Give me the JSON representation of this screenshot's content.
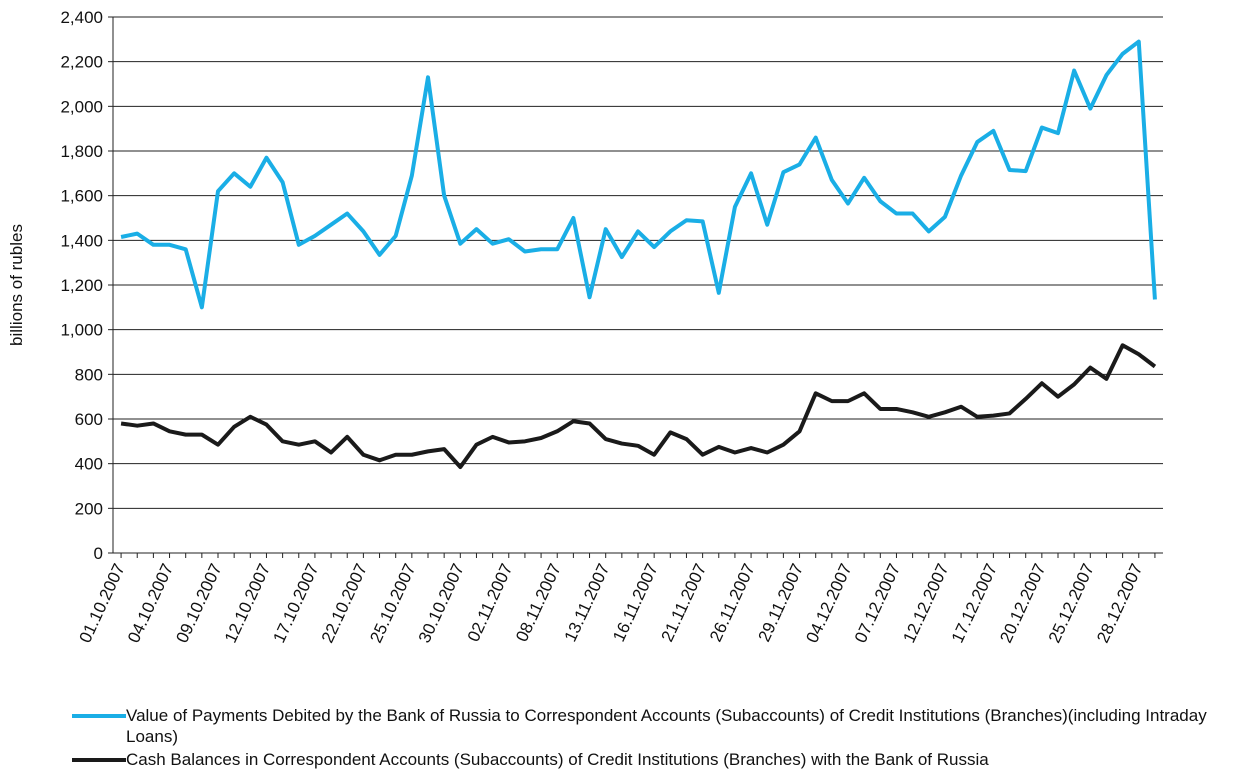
{
  "chart_data": {
    "type": "line",
    "y_label": "billions of rubles",
    "categories": [
      "01.10.2007",
      null,
      null,
      "04.10.2007",
      null,
      null,
      "09.10.2007",
      null,
      null,
      "12.10.2007",
      null,
      null,
      "17.10.2007",
      null,
      null,
      "22.10.2007",
      null,
      null,
      "25.10.2007",
      null,
      null,
      "30.10.2007",
      null,
      null,
      "02.11.2007",
      null,
      null,
      "08.11.2007",
      null,
      null,
      "13.11.2007",
      null,
      null,
      "16.11.2007",
      null,
      null,
      "21.11.2007",
      null,
      null,
      "26.11.2007",
      null,
      null,
      "29.11.2007",
      null,
      null,
      "04.12.2007",
      null,
      null,
      "07.12.2007",
      null,
      null,
      "12.12.2007",
      null,
      null,
      "17.12.2007",
      null,
      null,
      "20.12.2007",
      null,
      null,
      "25.12.2007",
      null,
      null,
      "28.12.2007",
      null
    ],
    "series": [
      {
        "name": "Value of Payments Debited by the Bank of Russia to Correspondent Accounts (Subaccounts) of Credit Institutions (Branches)(including Intraday Loans)",
        "color": "#1aaee6",
        "values": [
          1415,
          1430,
          1380,
          1380,
          1360,
          1100,
          1620,
          1700,
          1640,
          1770,
          1660,
          1380,
          1420,
          1470,
          1520,
          1440,
          1335,
          1420,
          1690,
          2130,
          1600,
          1385,
          1450,
          1385,
          1405,
          1350,
          1360,
          1360,
          1500,
          1145,
          1450,
          1325,
          1440,
          1370,
          1440,
          1490,
          1485,
          1165,
          1550,
          1700,
          1470,
          1705,
          1740,
          1860,
          1670,
          1565,
          1680,
          1575,
          1520,
          1520,
          1440,
          1505,
          1690,
          1840,
          1890,
          1715,
          1710,
          1905,
          1880,
          2160,
          1990,
          2140,
          2235,
          2290,
          1135
        ]
      },
      {
        "name": "Cash Balances in Correspondent Accounts (Subaccounts) of Credit Institutions (Branches) with the Bank of Russia",
        "color": "#1a1a1a",
        "values": [
          580,
          570,
          580,
          545,
          530,
          530,
          485,
          565,
          610,
          575,
          500,
          485,
          500,
          450,
          520,
          440,
          415,
          440,
          440,
          455,
          465,
          385,
          485,
          520,
          495,
          500,
          515,
          545,
          590,
          580,
          510,
          490,
          480,
          440,
          540,
          510,
          440,
          475,
          450,
          470,
          450,
          485,
          545,
          715,
          680,
          680,
          715,
          645,
          645,
          630,
          610,
          630,
          655,
          610,
          615,
          625,
          690,
          760,
          700,
          755,
          830,
          780,
          930,
          890,
          835
        ]
      }
    ],
    "ylim": [
      0,
      2400
    ],
    "yticks": [
      0,
      200,
      400,
      600,
      800,
      {
        "value": 1000,
        "label": "1,000"
      },
      {
        "value": 1200,
        "label": "1,200"
      },
      {
        "value": 1400,
        "label": "1,400"
      },
      {
        "value": 1600,
        "label": "1,600"
      },
      {
        "value": 1800,
        "label": "1,800"
      },
      {
        "value": 2000,
        "label": "2,000"
      },
      {
        "value": 2200,
        "label": "2,200"
      },
      {
        "value": 2400,
        "label": "2,400"
      }
    ],
    "grid": true
  }
}
